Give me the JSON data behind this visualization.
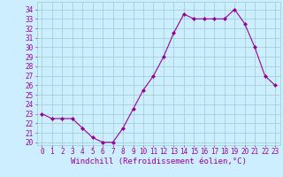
{
  "x": [
    0,
    1,
    2,
    3,
    4,
    5,
    6,
    7,
    8,
    9,
    10,
    11,
    12,
    13,
    14,
    15,
    16,
    17,
    18,
    19,
    20,
    21,
    22,
    23
  ],
  "y": [
    23.0,
    22.5,
    22.5,
    22.5,
    21.5,
    20.5,
    20.0,
    20.0,
    21.5,
    23.5,
    25.5,
    27.0,
    29.0,
    31.5,
    33.5,
    33.0,
    33.0,
    33.0,
    33.0,
    34.0,
    32.5,
    30.0,
    27.0,
    26.0
  ],
  "ylim": [
    19.7,
    34.8
  ],
  "xlim": [
    -0.5,
    23.5
  ],
  "yticks": [
    20,
    21,
    22,
    23,
    24,
    25,
    26,
    27,
    28,
    29,
    30,
    31,
    32,
    33,
    34
  ],
  "xticks": [
    0,
    1,
    2,
    3,
    4,
    5,
    6,
    7,
    8,
    9,
    10,
    11,
    12,
    13,
    14,
    15,
    16,
    17,
    18,
    19,
    20,
    21,
    22,
    23
  ],
  "xlabel": "Windchill (Refroidissement éolien,°C)",
  "line_color": "#990099",
  "marker": "D",
  "marker_size": 2,
  "bg_color": "#cceeff",
  "grid_color": "#99cccc",
  "tick_label_fontsize": 5.5,
  "xlabel_fontsize": 6.5,
  "title": ""
}
